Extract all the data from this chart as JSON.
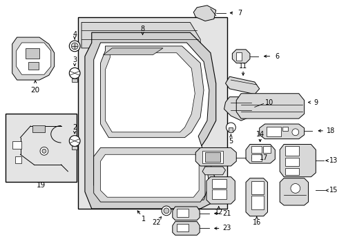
{
  "bg_color": "#ffffff",
  "fig_width": 4.89,
  "fig_height": 3.6,
  "dpi": 100,
  "panel_fill": "#e8e8e8",
  "part_fill": "#e8e8e8",
  "line_color": "#000000"
}
